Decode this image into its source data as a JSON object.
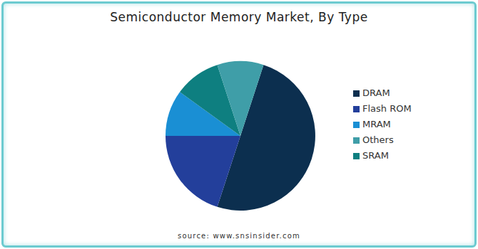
{
  "chart_data": {
    "type": "pie",
    "title": "Semiconductor Memory Market, By Type",
    "categories": [
      "DRAM",
      "Flash ROM",
      "MRAM",
      "SRAM",
      "Others"
    ],
    "values": [
      50,
      20,
      10,
      10,
      10
    ],
    "colors": [
      "#0c2f4f",
      "#233f9b",
      "#1a8fd4",
      "#0e7f80",
      "#3f9ea8"
    ],
    "legend": "right",
    "annotations": [
      "source: www.snsinsider.com"
    ]
  }
}
